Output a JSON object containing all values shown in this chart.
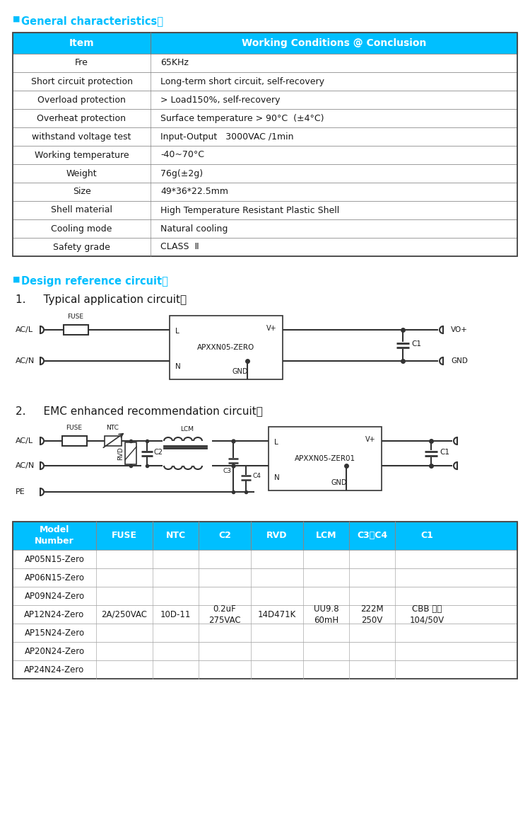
{
  "bg_color": "#ffffff",
  "cyan_color": "#00BFFF",
  "table_header_bg": "#00BFFF",
  "table_border": "#555555",
  "text_color": "#1a1a1a",
  "section1_title": "General characteristics：",
  "section2_title": "Design reference circuit：",
  "circuit1_title": "1.   Typical application circuit：",
  "circuit2_title": "2.   EMC enhanced recommendation circuit：",
  "table1_headers": [
    "Item",
    "Working Conditions @ Conclusion"
  ],
  "table1_rows": [
    [
      "Fre",
      "65KHz"
    ],
    [
      "Short circuit protection",
      "Long-term short circuit, self-recovery"
    ],
    [
      "Overload protection",
      "> Load150%, self-recovery"
    ],
    [
      "Overheat protection",
      "Surface temperature > 90°C  (±4°C)"
    ],
    [
      "withstand voltage test",
      "Input-Output   3000VAC /1min"
    ],
    [
      "Working temperature",
      "-40~70°C"
    ],
    [
      "Weight",
      "76g(±2g)"
    ],
    [
      "Size",
      "49*36*22.5mm"
    ],
    [
      "Shell material",
      "High Temperature Resistant Plastic Shell"
    ],
    [
      "Cooling mode",
      "Natural cooling"
    ],
    [
      "Safety grade",
      "CLASS  Ⅱ"
    ]
  ],
  "table2_headers": [
    "Model\nNumber",
    "FUSE",
    "NTC",
    "C2",
    "RVD",
    "LCM",
    "C3，C4",
    "C1"
  ],
  "table2_rows": [
    [
      "AP05N15-Zero",
      "",
      "",
      "",
      "",
      "",
      "",
      ""
    ],
    [
      "AP06N15-Zero",
      "",
      "",
      "",
      "",
      "",
      "",
      ""
    ],
    [
      "AP09N24-Zero",
      "",
      "",
      "",
      "",
      "",
      "",
      ""
    ],
    [
      "AP12N24-Zero",
      "2A/250VAC",
      "10D-11",
      "0.2uF\n275VAC",
      "14D471K",
      "UU9.8\n60mH",
      "222M\n250V",
      "CBB 电容\n104/50V"
    ],
    [
      "AP15N24-Zero",
      "",
      "",
      "",
      "",
      "",
      "",
      ""
    ],
    [
      "AP20N24-Zero",
      "",
      "",
      "",
      "",
      "",
      "",
      ""
    ],
    [
      "AP24N24-Zero",
      "",
      "",
      "",
      "",
      "",
      "",
      ""
    ]
  ]
}
